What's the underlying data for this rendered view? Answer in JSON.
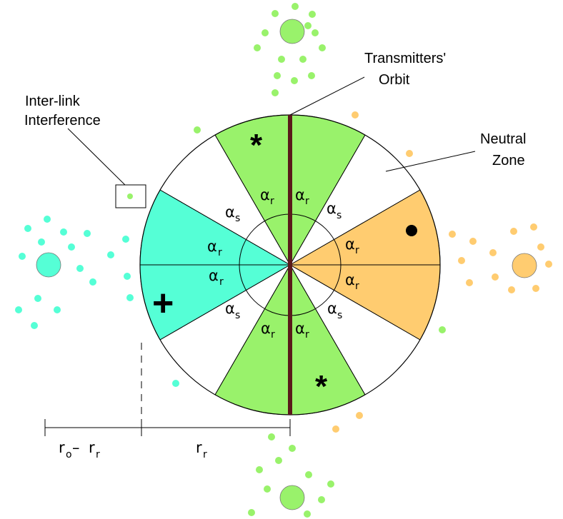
{
  "labels": {
    "transmitters_orbit": [
      "Transmitters'",
      "Orbit"
    ],
    "inter_link": [
      "Inter-link",
      "Interference"
    ],
    "neutral_zone": [
      "Neutral",
      "Zone"
    ],
    "alpha": "α",
    "sub_r": "r",
    "sub_s": "s",
    "r_r_main": "r",
    "r_r_sub": "r",
    "r_o_main": "r",
    "r_o_sub": "o",
    "r_o_dash": " –  ",
    "r_o_r_main": "r",
    "r_o_r_sub": "r"
  },
  "markers": {
    "star": "*",
    "plus": "+",
    "dot": "•"
  },
  "colors": {
    "green": "#99f26b",
    "teal": "#55ffd6",
    "orange": "#ffcc70",
    "orbit_line": "#5a1a1a",
    "stroke": "#000000"
  }
}
